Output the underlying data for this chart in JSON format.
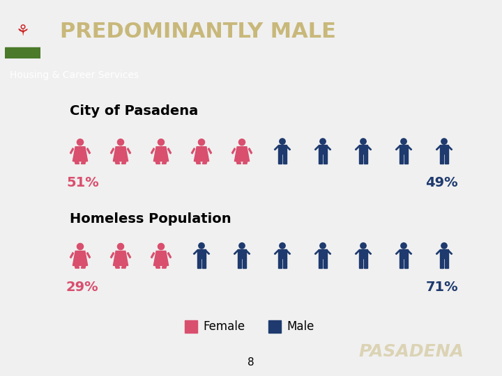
{
  "title": "PREDOMINANTLY MALE",
  "subtitle": "Housing & Career Services",
  "header_bg": "#1a3a6b",
  "subheader_bg": "#5b7aaa",
  "content_bg": "#f0f0f0",
  "title_color": "#c8b87a",
  "subtitle_color": "#ffffff",
  "female_color": "#d94f6e",
  "male_color": "#1e3a6e",
  "section1_title": "City of Pasadena",
  "section2_title": "Homeless Population",
  "city_female_pct": "51%",
  "city_male_pct": "49%",
  "homeless_female_pct": "29%",
  "homeless_male_pct": "71%",
  "city_female_count": 5,
  "city_male_count": 5,
  "homeless_female_count": 3,
  "homeless_male_count": 7,
  "total_icons": 10,
  "page_number": "8",
  "pasadena_color": "#c8b87a",
  "legend_female": "Female",
  "legend_male": "Male"
}
